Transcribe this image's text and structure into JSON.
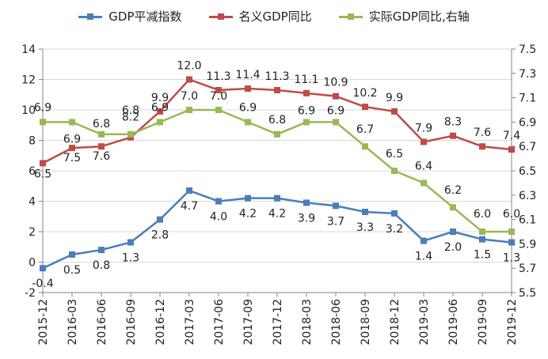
{
  "chart_data": {
    "type": "line",
    "categories": [
      "2015-12",
      "2016-03",
      "2016-06",
      "2016-09",
      "2016-12",
      "2017-03",
      "2017-06",
      "2017-09",
      "2017-12",
      "2018-03",
      "2018-06",
      "2018-09",
      "2018-12",
      "2019-03",
      "2019-06",
      "2019-09",
      "2019-12"
    ],
    "series": [
      {
        "name": "GDP平减指数",
        "axis": "left",
        "color": "#4a7ebb",
        "values": [
          -0.4,
          0.5,
          0.8,
          1.3,
          2.8,
          4.7,
          4.0,
          4.2,
          4.2,
          3.9,
          3.7,
          3.3,
          3.2,
          1.4,
          2.0,
          1.5,
          1.3
        ],
        "labels": [
          "-0.4",
          "0.5",
          "0.8",
          "1.3",
          "2.8",
          "4.7",
          "4.0",
          "4.2",
          "4.2",
          "3.9",
          "3.7",
          "3.3",
          "3.2",
          "1.4",
          "2.0",
          "1.5",
          "1.3"
        ]
      },
      {
        "name": "名义GDP同比",
        "axis": "left",
        "color": "#be4b48",
        "values": [
          6.5,
          7.5,
          7.6,
          8.2,
          9.9,
          12.0,
          11.3,
          11.4,
          11.3,
          11.1,
          10.9,
          10.2,
          9.9,
          7.9,
          8.3,
          7.6,
          7.4
        ],
        "labels": [
          "6.5",
          "7.5",
          "7.6",
          "8.2",
          "9.9",
          "12.0",
          "11.3",
          "11.4",
          "11.3",
          "11.1",
          "10.9",
          "10.2",
          "9.9",
          "7.9",
          "8.3",
          "7.6",
          "7.4"
        ]
      },
      {
        "name": "实际GDP同比,右轴",
        "axis": "right",
        "color": "#98b954",
        "values": [
          6.9,
          6.9,
          6.8,
          6.8,
          6.9,
          7.0,
          7.0,
          6.9,
          6.8,
          6.9,
          6.9,
          6.7,
          6.5,
          6.4,
          6.2,
          6.0,
          6.0
        ],
        "labels": [
          "6.9",
          "6.9",
          "6.8",
          "6.8",
          "6.9",
          "7.0",
          "7.0",
          "6.9",
          "6.8",
          "6.9",
          "6.9",
          "6.7",
          "6.5",
          "6.4",
          "6.2",
          "6.0",
          "6.0"
        ]
      }
    ],
    "left_axis": {
      "min": -2,
      "max": 14,
      "ticks": [
        "-2",
        "0",
        "2",
        "4",
        "6",
        "8",
        "10",
        "12",
        "14"
      ]
    },
    "right_axis": {
      "min": 5.5,
      "max": 7.5,
      "ticks": [
        "5.5",
        "5.7",
        "5.9",
        "6.1",
        "6.3",
        "6.5",
        "6.7",
        "6.9",
        "7.1",
        "7.3",
        "7.5"
      ]
    },
    "grid": true,
    "legend_position": "top"
  }
}
